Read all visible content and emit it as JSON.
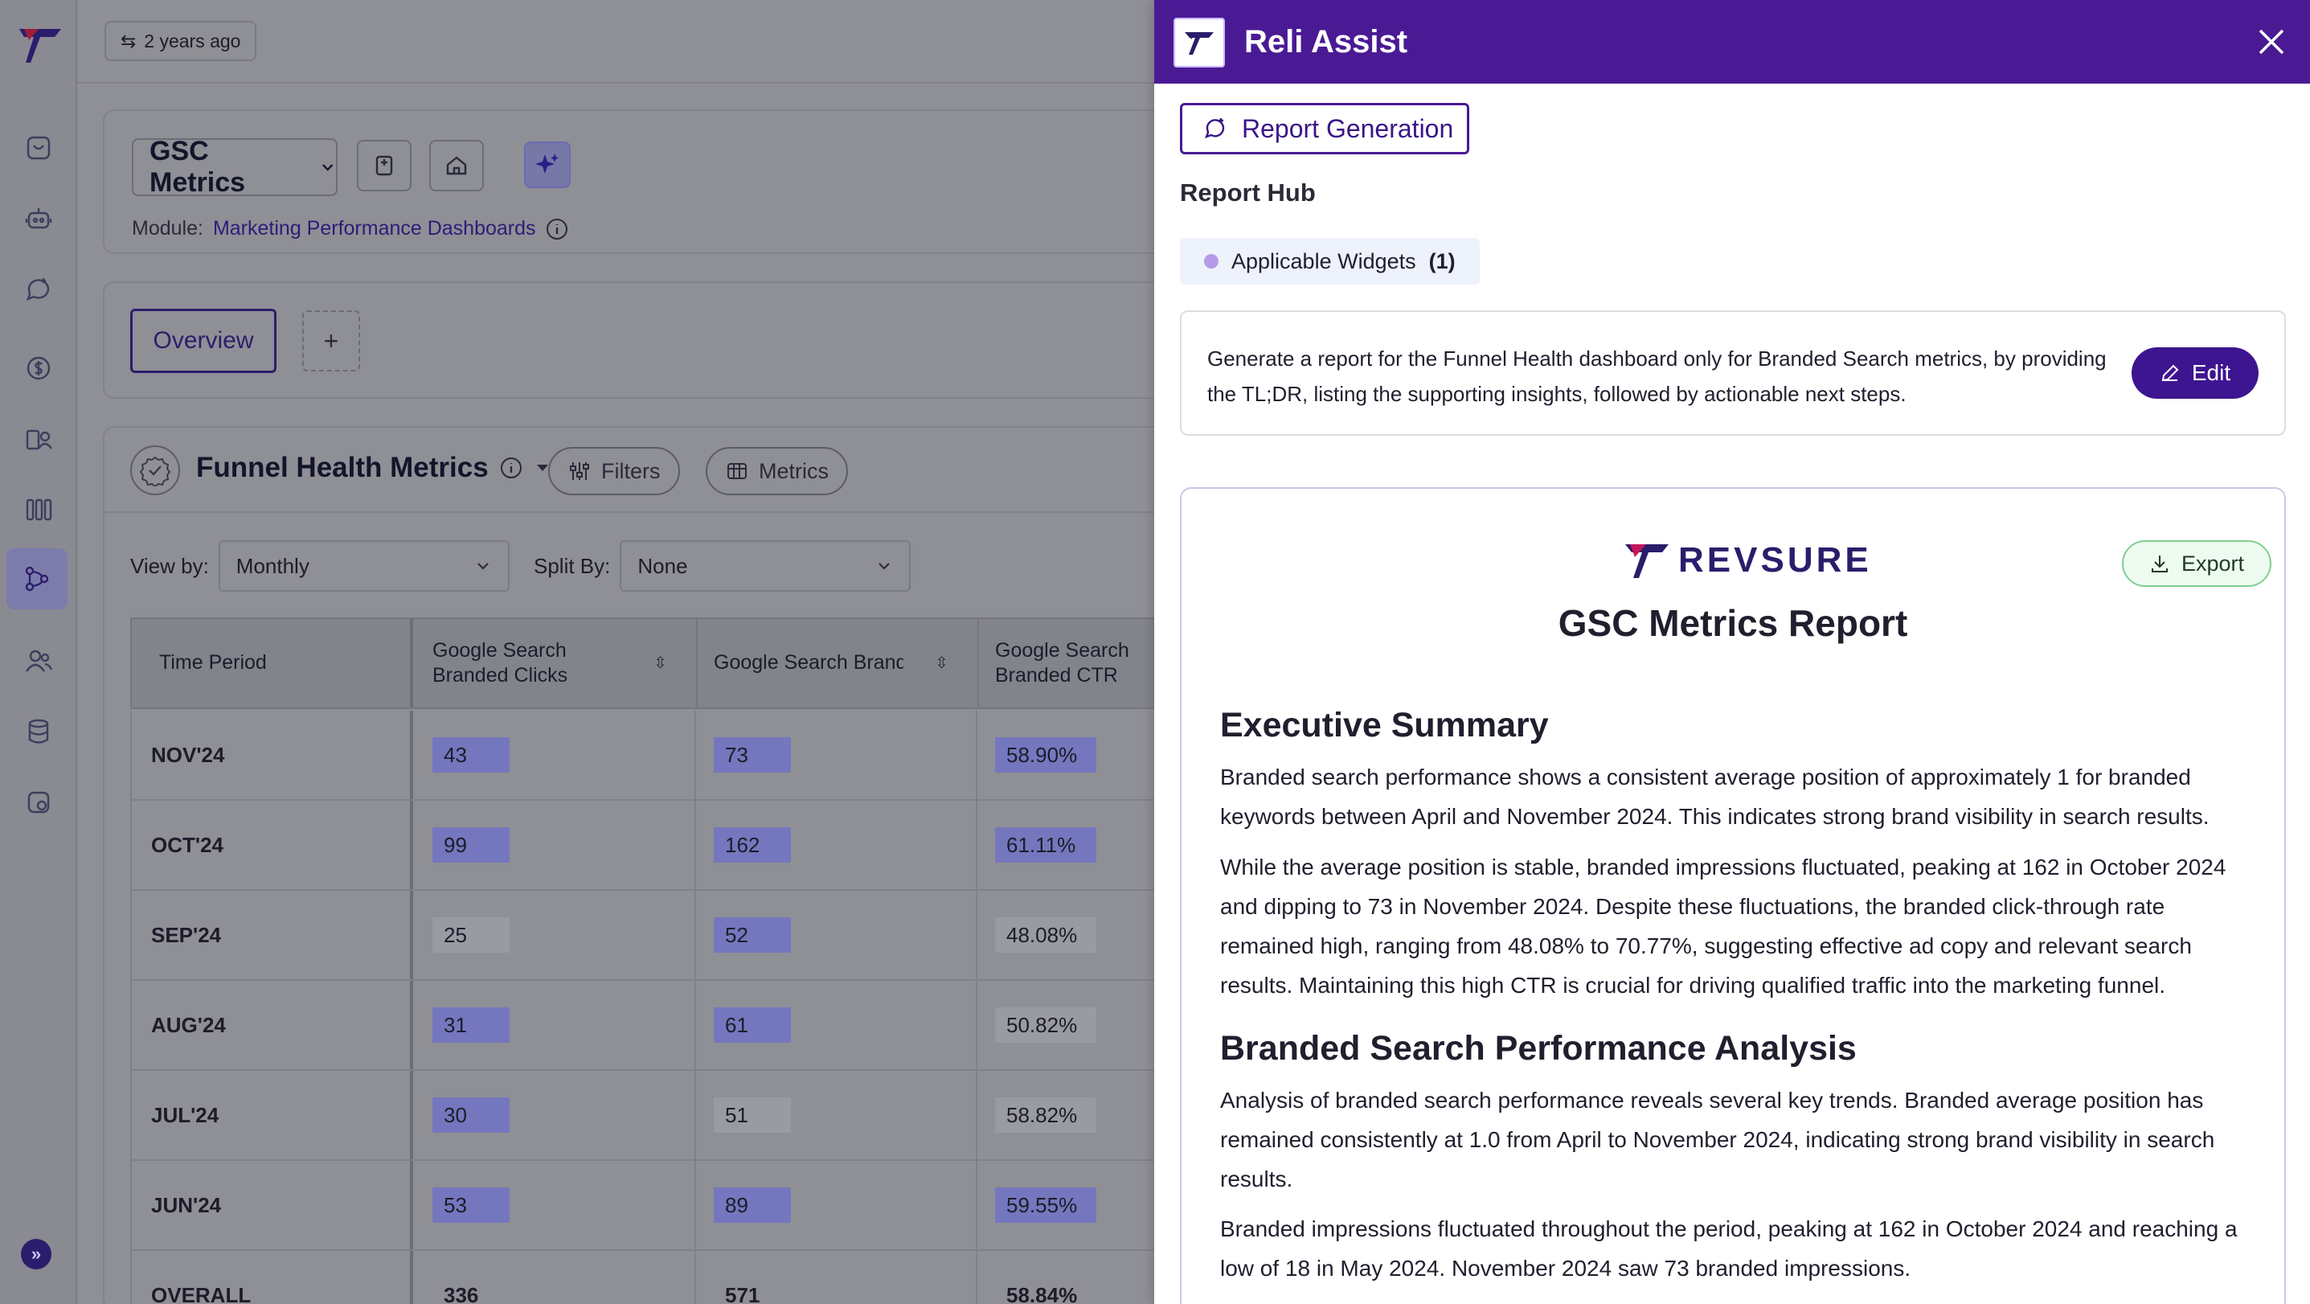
{
  "topbar": {
    "last_updated": "2 years ago"
  },
  "header": {
    "dashboard_select": "GSC Metrics",
    "module_label": "Module:",
    "module_link": "Marketing Performance Dashboards"
  },
  "tabs": {
    "overview": "Overview",
    "add": "+"
  },
  "widget": {
    "title": "Funnel Health Metrics",
    "filters_label": "Filters",
    "metrics_label": "Metrics",
    "view_by_label": "View by:",
    "view_by_value": "Monthly",
    "split_by_label": "Split By:",
    "split_by_value": "None"
  },
  "table": {
    "columns": [
      "Time Period",
      "Google Search Branded Clicks",
      "Google Search Branded Impressi...",
      "Google Search Branded CTR"
    ],
    "rows": [
      {
        "period": "NOV'24",
        "clicks": "43",
        "impressions": "73",
        "ctr": "58.90%"
      },
      {
        "period": "OCT'24",
        "clicks": "99",
        "impressions": "162",
        "ctr": "61.11%"
      },
      {
        "period": "SEP'24",
        "clicks": "25",
        "impressions": "52",
        "ctr": "48.08%"
      },
      {
        "period": "AUG'24",
        "clicks": "31",
        "impressions": "61",
        "ctr": "50.82%"
      },
      {
        "period": "JUL'24",
        "clicks": "30",
        "impressions": "51",
        "ctr": "58.82%"
      },
      {
        "period": "JUN'24",
        "clicks": "53",
        "impressions": "89",
        "ctr": "59.55%"
      },
      {
        "period": "OVERALL",
        "clicks": "336",
        "impressions": "571",
        "ctr": "58.84%"
      }
    ]
  },
  "assistant": {
    "title": "Reli Assist",
    "report_generation": "Report Generation",
    "report_hub": "Report Hub",
    "applicable_widgets": "Applicable Widgets",
    "applicable_widgets_count": "(1)",
    "prompt": "Generate a report for the Funnel Health dashboard only for Branded Search metrics, by providing the TL;DR, listing the supporting insights, followed by actionable next steps.",
    "edit_label": "Edit",
    "export_label": "Export",
    "brand_word": "REVSURE",
    "report_title": "GSC Metrics Report",
    "section1_title": "Executive Summary",
    "section1_p1": "Branded search performance shows a consistent average position of approximately 1 for branded keywords between April and November 2024. This indicates strong brand visibility in search results.",
    "section1_p2": "While the average position is stable, branded impressions fluctuated, peaking at 162 in October 2024 and dipping to 73 in November 2024. Despite these fluctuations, the branded click-through rate remained high, ranging from 48.08% to 70.77%, suggesting effective ad copy and relevant search results. Maintaining this high CTR is crucial for driving qualified traffic into the marketing funnel.",
    "section2_title": "Branded Search Performance Analysis",
    "section2_p1": "Analysis of branded search performance reveals several key trends. Branded average position has remained consistently at 1.0 from April to November 2024, indicating strong brand visibility in search results.",
    "section2_p2": "Branded impressions fluctuated throughout the period, peaking at 162 in October 2024 and reaching a low of 18 in May 2024. November 2024 saw 73 branded impressions."
  },
  "colors": {
    "brand_purple": "#4a1a94",
    "highlight_bar": "#7477bd",
    "export_green": "#7fcf8f"
  }
}
